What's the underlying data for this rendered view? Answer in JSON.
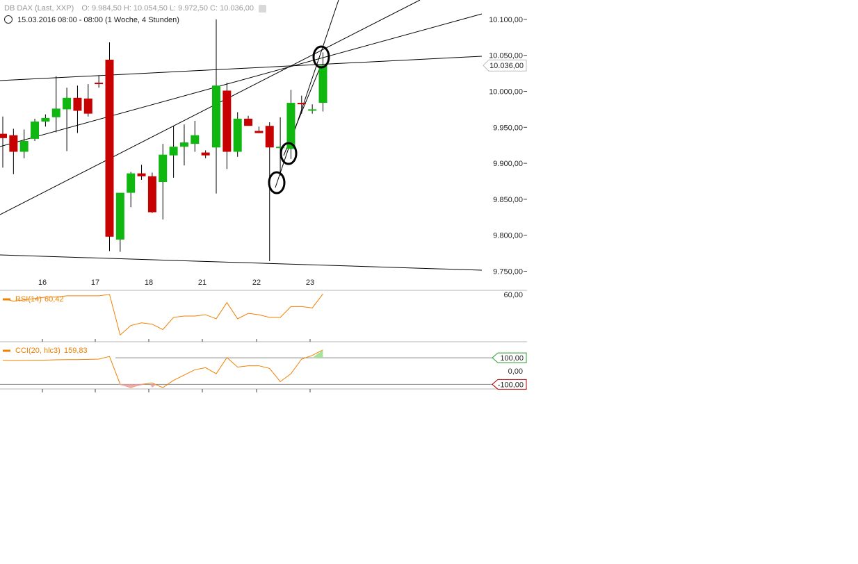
{
  "header": {
    "title": "DB DAX (Last, XXP)",
    "ohlc": "O: 9.984,50   H: 10.054,50   L: 9.972,50   C: 10.036,00",
    "period": "15.03.2016 08:00 - 08:00 (1 Woche, 4 Stunden)"
  },
  "colors": {
    "up": "#11b711",
    "down": "#c70000",
    "indicator": "#f08000",
    "trendline": "#000000",
    "axis": "#9a9a9a"
  },
  "icons": [
    "clock-icon",
    "settings-icon",
    "close-icon"
  ],
  "chart_data": [
    {
      "type": "candlestick",
      "title": "DB DAX (Last, XXP)",
      "x_tick_labels": [
        "16",
        "17",
        "18",
        "21",
        "22",
        "23"
      ],
      "y_tick_labels": [
        "10.100,00",
        "10.050,00",
        "10.000,00",
        "9.950,00",
        "9.900,00",
        "9.850,00",
        "9.800,00",
        "9.750,00"
      ],
      "last_price_label": "10.036,00",
      "ylim": [
        9736,
        10125
      ],
      "candles": [
        {
          "o": 9941,
          "h": 9965,
          "l": 9894,
          "c": 9935
        },
        {
          "o": 9939,
          "h": 9948,
          "l": 9885,
          "c": 9916
        },
        {
          "o": 9916,
          "h": 9947,
          "l": 9907,
          "c": 9931
        },
        {
          "o": 9934,
          "h": 9962,
          "l": 9931,
          "c": 9958
        },
        {
          "o": 9958,
          "h": 9968,
          "l": 9951,
          "c": 9963
        },
        {
          "o": 9964,
          "h": 10021,
          "l": 9943,
          "c": 9976
        },
        {
          "o": 9975,
          "h": 10005,
          "l": 9917,
          "c": 9991
        },
        {
          "o": 9991,
          "h": 10008,
          "l": 9942,
          "c": 9973
        },
        {
          "o": 9990,
          "h": 10010,
          "l": 9965,
          "c": 9969
        },
        {
          "o": 10012,
          "h": 10022,
          "l": 10005,
          "c": 10011
        },
        {
          "o": 10044,
          "h": 10068,
          "l": 9778,
          "c": 9798
        },
        {
          "o": 9794,
          "h": 9856,
          "l": 9777,
          "c": 9859
        },
        {
          "o": 9859,
          "h": 9888,
          "l": 9839,
          "c": 9886
        },
        {
          "o": 9886,
          "h": 9898,
          "l": 9877,
          "c": 9882
        },
        {
          "o": 9882,
          "h": 9887,
          "l": 9831,
          "c": 9832
        },
        {
          "o": 9874,
          "h": 9927,
          "l": 9822,
          "c": 9912
        },
        {
          "o": 9911,
          "h": 9952,
          "l": 9880,
          "c": 9923
        },
        {
          "o": 9923,
          "h": 9954,
          "l": 9897,
          "c": 9929
        },
        {
          "o": 9927,
          "h": 9959,
          "l": 9916,
          "c": 9939
        },
        {
          "o": 9915,
          "h": 9918,
          "l": 9907,
          "c": 9911
        },
        {
          "o": 9922,
          "h": 10100,
          "l": 9858,
          "c": 10008
        },
        {
          "o": 10001,
          "h": 10012,
          "l": 9892,
          "c": 9916
        },
        {
          "o": 9916,
          "h": 9971,
          "l": 9909,
          "c": 9962
        },
        {
          "o": 9962,
          "h": 9966,
          "l": 9953,
          "c": 9952
        },
        {
          "o": 9945,
          "h": 9951,
          "l": 9942,
          "c": 9942
        },
        {
          "o": 9952,
          "h": 9957,
          "l": 9764,
          "c": 9922
        },
        {
          "o": 9923,
          "h": 9964,
          "l": 9883,
          "c": 9923
        },
        {
          "o": 9920,
          "h": 10002,
          "l": 9906,
          "c": 9984
        },
        {
          "o": 9984,
          "h": 9994,
          "l": 9969,
          "c": 9982
        },
        {
          "o": 9975,
          "h": 9982,
          "l": 9969,
          "c": 9975
        },
        {
          "o": 9984,
          "h": 10054,
          "l": 9972,
          "c": 10036
        }
      ]
    },
    {
      "type": "line",
      "title": "RSI(14)",
      "last_value": "60,42",
      "y_tick_labels": [
        "60,00"
      ],
      "ylim": [
        25,
        62
      ],
      "values": [
        57,
        55,
        56,
        57,
        58,
        58,
        59,
        59,
        59,
        59,
        60,
        30,
        37,
        39,
        38,
        34,
        43,
        44,
        44,
        45,
        42,
        54,
        42,
        46,
        45,
        43,
        43,
        51,
        51,
        50,
        60.42
      ]
    },
    {
      "type": "line",
      "title": "CCI(20, hlc3)",
      "last_value": "159,83",
      "y_tick_labels": [
        "100,00",
        "0,00",
        "-100,00"
      ],
      "ylim": [
        -135,
        200
      ],
      "values": [
        80,
        78,
        80,
        82,
        82,
        85,
        86,
        86,
        88,
        90,
        110,
        -100,
        -125,
        -100,
        -90,
        -125,
        -70,
        -30,
        10,
        25,
        -20,
        102,
        30,
        40,
        40,
        20,
        -80,
        -20,
        90,
        118,
        159.83
      ]
    }
  ]
}
